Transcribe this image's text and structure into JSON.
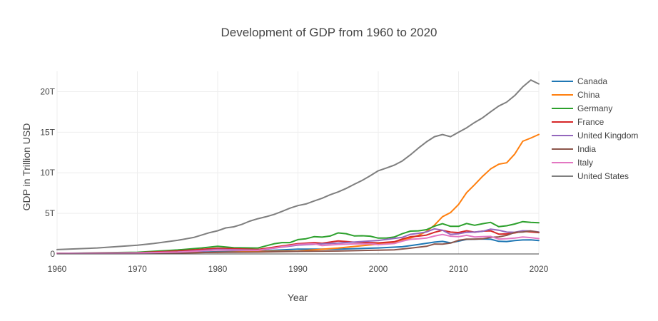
{
  "chart_data": {
    "type": "line",
    "title": "Development of GDP from 1960 to 2020",
    "xlabel": "Year",
    "ylabel": "GDP in Trillion USD",
    "xlim": [
      1960,
      2020
    ],
    "ylim": [
      0,
      22.5
    ],
    "x_ticks": [
      1960,
      1970,
      1980,
      1990,
      2000,
      2010,
      2020
    ],
    "x_tick_labels": [
      "1960",
      "1970",
      "1980",
      "1990",
      "2000",
      "2010",
      "2020"
    ],
    "y_ticks": [
      0,
      5,
      10,
      15,
      20
    ],
    "y_tick_labels": [
      "0",
      "5T",
      "10T",
      "15T",
      "20T"
    ],
    "grid": true,
    "legend_position": "right",
    "series": [
      {
        "name": "Canada",
        "color": "#1f77b4",
        "points": [
          [
            1960,
            0.04
          ],
          [
            1970,
            0.09
          ],
          [
            1975,
            0.17
          ],
          [
            1980,
            0.27
          ],
          [
            1985,
            0.36
          ],
          [
            1990,
            0.59
          ],
          [
            1995,
            0.6
          ],
          [
            2000,
            0.74
          ],
          [
            2003,
            0.89
          ],
          [
            2005,
            1.17
          ],
          [
            2007,
            1.46
          ],
          [
            2008,
            1.55
          ],
          [
            2009,
            1.37
          ],
          [
            2011,
            1.79
          ],
          [
            2013,
            1.85
          ],
          [
            2014,
            1.81
          ],
          [
            2015,
            1.56
          ],
          [
            2016,
            1.53
          ],
          [
            2017,
            1.65
          ],
          [
            2018,
            1.72
          ],
          [
            2019,
            1.74
          ],
          [
            2020,
            1.65
          ]
        ]
      },
      {
        "name": "China",
        "color": "#ff7f0e",
        "points": [
          [
            1960,
            0.06
          ],
          [
            1970,
            0.09
          ],
          [
            1980,
            0.19
          ],
          [
            1985,
            0.31
          ],
          [
            1990,
            0.36
          ],
          [
            1995,
            0.73
          ],
          [
            2000,
            1.21
          ],
          [
            2002,
            1.47
          ],
          [
            2004,
            1.96
          ],
          [
            2005,
            2.29
          ],
          [
            2006,
            2.75
          ],
          [
            2007,
            3.55
          ],
          [
            2008,
            4.59
          ],
          [
            2009,
            5.1
          ],
          [
            2010,
            6.09
          ],
          [
            2011,
            7.55
          ],
          [
            2012,
            8.53
          ],
          [
            2013,
            9.57
          ],
          [
            2014,
            10.48
          ],
          [
            2015,
            11.06
          ],
          [
            2016,
            11.23
          ],
          [
            2017,
            12.31
          ],
          [
            2018,
            13.89
          ],
          [
            2019,
            14.28
          ],
          [
            2020,
            14.72
          ]
        ]
      },
      {
        "name": "Germany",
        "color": "#2ca02c",
        "points": [
          [
            1960,
            0.07
          ],
          [
            1970,
            0.21
          ],
          [
            1975,
            0.49
          ],
          [
            1978,
            0.74
          ],
          [
            1980,
            0.95
          ],
          [
            1982,
            0.77
          ],
          [
            1985,
            0.73
          ],
          [
            1987,
            1.25
          ],
          [
            1988,
            1.4
          ],
          [
            1989,
            1.4
          ],
          [
            1990,
            1.77
          ],
          [
            1991,
            1.87
          ],
          [
            1992,
            2.13
          ],
          [
            1993,
            2.07
          ],
          [
            1994,
            2.21
          ],
          [
            1995,
            2.59
          ],
          [
            1996,
            2.5
          ],
          [
            1997,
            2.22
          ],
          [
            1998,
            2.24
          ],
          [
            1999,
            2.19
          ],
          [
            2000,
            1.95
          ],
          [
            2001,
            1.95
          ],
          [
            2002,
            2.08
          ],
          [
            2003,
            2.5
          ],
          [
            2004,
            2.81
          ],
          [
            2005,
            2.85
          ],
          [
            2006,
            2.99
          ],
          [
            2007,
            3.42
          ],
          [
            2008,
            3.73
          ],
          [
            2009,
            3.4
          ],
          [
            2010,
            3.4
          ],
          [
            2011,
            3.75
          ],
          [
            2012,
            3.53
          ],
          [
            2013,
            3.73
          ],
          [
            2014,
            3.89
          ],
          [
            2015,
            3.36
          ],
          [
            2016,
            3.47
          ],
          [
            2017,
            3.69
          ],
          [
            2018,
            3.98
          ],
          [
            2019,
            3.89
          ],
          [
            2020,
            3.84
          ]
        ]
      },
      {
        "name": "France",
        "color": "#d62728",
        "points": [
          [
            1960,
            0.06
          ],
          [
            1970,
            0.15
          ],
          [
            1975,
            0.36
          ],
          [
            1980,
            0.7
          ],
          [
            1985,
            0.55
          ],
          [
            1990,
            1.27
          ],
          [
            1992,
            1.4
          ],
          [
            1993,
            1.32
          ],
          [
            1995,
            1.6
          ],
          [
            1997,
            1.45
          ],
          [
            2000,
            1.36
          ],
          [
            2002,
            1.5
          ],
          [
            2003,
            1.84
          ],
          [
            2004,
            2.12
          ],
          [
            2005,
            2.2
          ],
          [
            2006,
            2.32
          ],
          [
            2007,
            2.66
          ],
          [
            2008,
            2.92
          ],
          [
            2009,
            2.69
          ],
          [
            2010,
            2.64
          ],
          [
            2011,
            2.86
          ],
          [
            2012,
            2.68
          ],
          [
            2013,
            2.81
          ],
          [
            2014,
            2.85
          ],
          [
            2015,
            2.44
          ],
          [
            2016,
            2.47
          ],
          [
            2017,
            2.59
          ],
          [
            2018,
            2.79
          ],
          [
            2019,
            2.72
          ],
          [
            2020,
            2.63
          ]
        ]
      },
      {
        "name": "United Kingdom",
        "color": "#9467bd",
        "points": [
          [
            1960,
            0.07
          ],
          [
            1970,
            0.13
          ],
          [
            1975,
            0.24
          ],
          [
            1980,
            0.56
          ],
          [
            1985,
            0.47
          ],
          [
            1990,
            1.09
          ],
          [
            1995,
            1.34
          ],
          [
            2000,
            1.66
          ],
          [
            2003,
            2.05
          ],
          [
            2004,
            2.42
          ],
          [
            2005,
            2.54
          ],
          [
            2006,
            2.71
          ],
          [
            2007,
            3.09
          ],
          [
            2008,
            2.93
          ],
          [
            2009,
            2.41
          ],
          [
            2010,
            2.49
          ],
          [
            2011,
            2.66
          ],
          [
            2012,
            2.7
          ],
          [
            2013,
            2.79
          ],
          [
            2014,
            3.06
          ],
          [
            2015,
            2.93
          ],
          [
            2016,
            2.69
          ],
          [
            2017,
            2.67
          ],
          [
            2018,
            2.86
          ],
          [
            2019,
            2.83
          ],
          [
            2020,
            2.71
          ]
        ]
      },
      {
        "name": "India",
        "color": "#8c564b",
        "points": [
          [
            1960,
            0.04
          ],
          [
            1970,
            0.06
          ],
          [
            1980,
            0.19
          ],
          [
            1985,
            0.23
          ],
          [
            1990,
            0.32
          ],
          [
            1995,
            0.36
          ],
          [
            2000,
            0.47
          ],
          [
            2002,
            0.51
          ],
          [
            2004,
            0.71
          ],
          [
            2006,
            0.94
          ],
          [
            2007,
            1.22
          ],
          [
            2008,
            1.2
          ],
          [
            2009,
            1.34
          ],
          [
            2010,
            1.68
          ],
          [
            2011,
            1.82
          ],
          [
            2012,
            1.83
          ],
          [
            2013,
            1.86
          ],
          [
            2014,
            2.04
          ],
          [
            2015,
            2.1
          ],
          [
            2016,
            2.29
          ],
          [
            2017,
            2.65
          ],
          [
            2018,
            2.7
          ],
          [
            2019,
            2.83
          ],
          [
            2020,
            2.66
          ]
        ]
      },
      {
        "name": "Italy",
        "color": "#e377c2",
        "points": [
          [
            1960,
            0.04
          ],
          [
            1970,
            0.11
          ],
          [
            1975,
            0.23
          ],
          [
            1980,
            0.48
          ],
          [
            1985,
            0.44
          ],
          [
            1990,
            1.18
          ],
          [
            1992,
            1.27
          ],
          [
            1993,
            1.03
          ],
          [
            1995,
            1.17
          ],
          [
            1997,
            1.24
          ],
          [
            1999,
            1.25
          ],
          [
            2000,
            1.14
          ],
          [
            2002,
            1.28
          ],
          [
            2003,
            1.58
          ],
          [
            2004,
            1.8
          ],
          [
            2005,
            1.86
          ],
          [
            2006,
            1.95
          ],
          [
            2007,
            2.21
          ],
          [
            2008,
            2.4
          ],
          [
            2009,
            2.19
          ],
          [
            2010,
            2.13
          ],
          [
            2011,
            2.29
          ],
          [
            2012,
            2.09
          ],
          [
            2013,
            2.14
          ],
          [
            2014,
            2.16
          ],
          [
            2015,
            1.84
          ],
          [
            2016,
            1.88
          ],
          [
            2017,
            1.96
          ],
          [
            2018,
            2.09
          ],
          [
            2019,
            2.01
          ],
          [
            2020,
            1.89
          ]
        ]
      },
      {
        "name": "United States",
        "color": "#7f7f7f",
        "points": [
          [
            1960,
            0.54
          ],
          [
            1965,
            0.74
          ],
          [
            1970,
            1.07
          ],
          [
            1972,
            1.28
          ],
          [
            1975,
            1.68
          ],
          [
            1977,
            2.03
          ],
          [
            1979,
            2.63
          ],
          [
            1980,
            2.86
          ],
          [
            1981,
            3.21
          ],
          [
            1982,
            3.34
          ],
          [
            1983,
            3.64
          ],
          [
            1984,
            4.04
          ],
          [
            1985,
            4.34
          ],
          [
            1986,
            4.58
          ],
          [
            1987,
            4.86
          ],
          [
            1988,
            5.24
          ],
          [
            1989,
            5.64
          ],
          [
            1990,
            5.96
          ],
          [
            1991,
            6.16
          ],
          [
            1992,
            6.52
          ],
          [
            1993,
            6.86
          ],
          [
            1994,
            7.29
          ],
          [
            1995,
            7.64
          ],
          [
            1996,
            8.07
          ],
          [
            1997,
            8.58
          ],
          [
            1998,
            9.06
          ],
          [
            1999,
            9.63
          ],
          [
            2000,
            10.25
          ],
          [
            2001,
            10.58
          ],
          [
            2002,
            10.94
          ],
          [
            2003,
            11.46
          ],
          [
            2004,
            12.21
          ],
          [
            2005,
            13.04
          ],
          [
            2006,
            13.81
          ],
          [
            2007,
            14.45
          ],
          [
            2008,
            14.71
          ],
          [
            2009,
            14.45
          ],
          [
            2010,
            14.99
          ],
          [
            2011,
            15.54
          ],
          [
            2012,
            16.2
          ],
          [
            2013,
            16.78
          ],
          [
            2014,
            17.52
          ],
          [
            2015,
            18.22
          ],
          [
            2016,
            18.71
          ],
          [
            2017,
            19.52
          ],
          [
            2018,
            20.58
          ],
          [
            2019,
            21.43
          ],
          [
            2020,
            20.95
          ]
        ]
      }
    ]
  }
}
